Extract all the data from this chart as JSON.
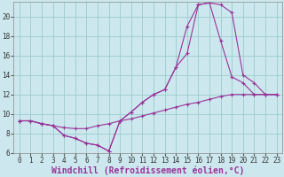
{
  "background_color": "#cce8ee",
  "line_color": "#993399",
  "grid_color": "#99cccc",
  "xlabel": "Windchill (Refroidissement éolien,°C)",
  "xlabel_fontsize": 7,
  "tick_fontsize": 5.5,
  "xlim": [
    -0.5,
    23.5
  ],
  "ylim": [
    6,
    21.5
  ],
  "yticks": [
    6,
    8,
    10,
    12,
    14,
    16,
    18,
    20
  ],
  "xticks": [
    0,
    1,
    2,
    3,
    4,
    5,
    6,
    7,
    8,
    9,
    10,
    11,
    12,
    13,
    14,
    15,
    16,
    17,
    18,
    19,
    20,
    21,
    22,
    23
  ],
  "line1_x": [
    0,
    1,
    2,
    3,
    4,
    5,
    6,
    7,
    8,
    9,
    10,
    11,
    12,
    13,
    14,
    15,
    16,
    17,
    18,
    19,
    20,
    21,
    22,
    23
  ],
  "line1_y": [
    9.3,
    9.3,
    9.0,
    8.8,
    7.8,
    7.5,
    7.0,
    6.8,
    6.2,
    9.3,
    10.2,
    11.2,
    12.0,
    12.5,
    14.8,
    19.0,
    21.2,
    21.4,
    17.5,
    13.8,
    13.2,
    12.0,
    12.0,
    12.0
  ],
  "line2_x": [
    0,
    1,
    2,
    3,
    4,
    5,
    6,
    7,
    8,
    9,
    10,
    11,
    12,
    13,
    14,
    15,
    16,
    17,
    18,
    19,
    20,
    21,
    22,
    23
  ],
  "line2_y": [
    9.3,
    9.3,
    9.0,
    8.8,
    7.8,
    7.5,
    7.0,
    6.8,
    6.2,
    9.3,
    10.2,
    11.2,
    12.0,
    12.5,
    14.8,
    16.2,
    21.2,
    21.4,
    21.2,
    20.4,
    14.0,
    13.2,
    12.0,
    12.0
  ],
  "line3_x": [
    0,
    1,
    2,
    3,
    4,
    5,
    6,
    7,
    8,
    9,
    10,
    11,
    12,
    13,
    14,
    15,
    16,
    17,
    18,
    19,
    20,
    21,
    22,
    23
  ],
  "line3_y": [
    9.3,
    9.3,
    9.0,
    8.8,
    8.6,
    8.5,
    8.5,
    8.8,
    9.0,
    9.3,
    9.5,
    9.8,
    10.1,
    10.4,
    10.7,
    11.0,
    11.2,
    11.5,
    11.8,
    12.0,
    12.0,
    12.0,
    12.0,
    12.0
  ],
  "marker": "+"
}
